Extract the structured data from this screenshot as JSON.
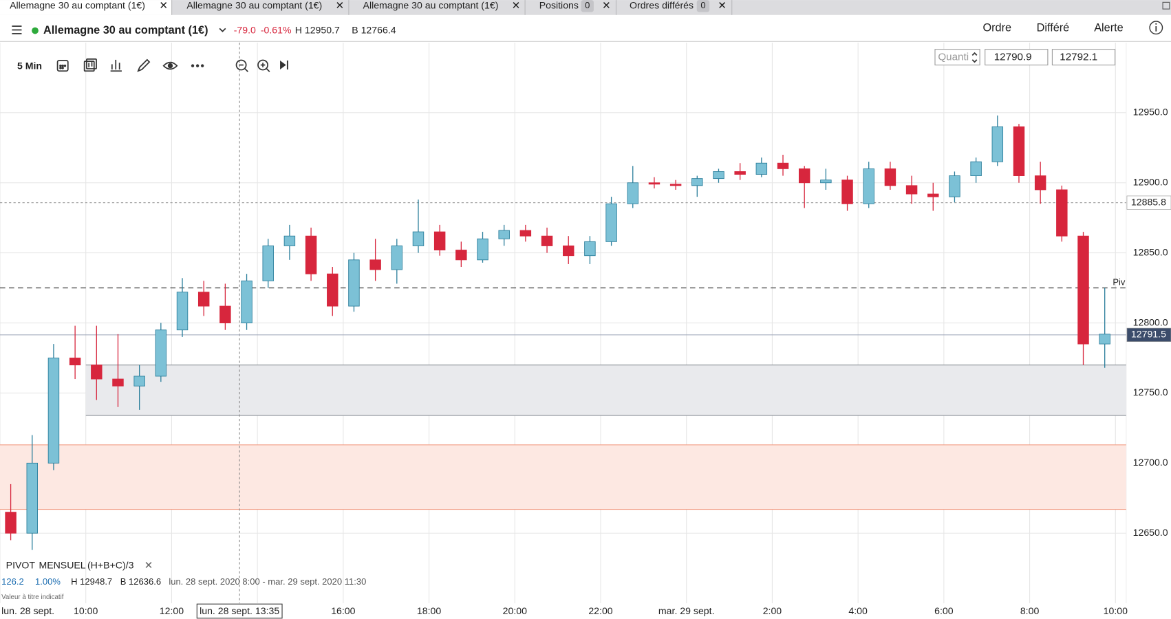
{
  "tabs": [
    {
      "label": "Allemagne 30 au comptant (1€)"
    },
    {
      "label": "Allemagne 30 au comptant (1€)"
    },
    {
      "label": "Allemagne 30 au comptant (1€)"
    },
    {
      "label": "Positions",
      "count": "0"
    },
    {
      "label": "Ordres différés",
      "count": "0"
    }
  ],
  "header": {
    "instrument": "Allemagne 30 au comptant (1€)",
    "change": "-79.0",
    "change_pct": "-0.61%",
    "high": "H 12950.7",
    "low": "B 12766.4",
    "actions": [
      "Ordre",
      "Différé",
      "Alerte"
    ]
  },
  "toolbar": {
    "interval": "5 Min",
    "quantity": "Quanti",
    "sell": "12790.9",
    "buy": "12792.1"
  },
  "chart_data": {
    "type": "candlestick",
    "x": [
      8,
      8.5,
      9,
      9.5,
      10,
      10.5,
      11,
      11.5,
      12,
      12.5,
      13,
      13.5,
      14,
      14.5,
      15,
      15.5,
      16,
      16.5,
      17,
      17.5,
      18,
      18.5,
      19,
      19.5,
      20,
      20.5,
      21,
      21.5,
      22,
      22.5,
      23,
      23.5,
      24,
      24.5,
      25,
      25.5,
      26,
      26.5,
      27,
      27.5,
      28,
      28.5,
      29,
      29.5,
      30,
      30.5,
      31,
      31.5,
      32,
      32.5,
      33,
      33.5
    ],
    "open": [
      12665,
      12650,
      12700,
      12775,
      12770,
      12760,
      12755,
      12762,
      12795,
      12822,
      12812,
      12800,
      12830,
      12855,
      12862,
      12835,
      12812,
      12845,
      12838,
      12855,
      12865,
      12852,
      12845,
      12860,
      12866,
      12862,
      12855,
      12848,
      12858,
      12885,
      12900,
      12899,
      12898,
      12903,
      12908,
      12906,
      12914,
      12910,
      12900,
      12902,
      12885,
      12910,
      12898,
      12892,
      12890,
      12905,
      12915,
      12940,
      12905,
      12895,
      12862,
      12785
    ],
    "high": [
      12685,
      12720,
      12785,
      12798,
      12798,
      12792,
      12770,
      12800,
      12832,
      12830,
      12828,
      12835,
      12860,
      12870,
      12868,
      12840,
      12850,
      12860,
      12860,
      12888,
      12870,
      12858,
      12865,
      12870,
      12870,
      12868,
      12862,
      12862,
      12890,
      12912,
      12904,
      12902,
      12905,
      12910,
      12914,
      12918,
      12920,
      12912,
      12910,
      12905,
      12915,
      12915,
      12905,
      12900,
      12908,
      12918,
      12948,
      12942,
      12915,
      12898,
      12865,
      12825
    ],
    "low": [
      12645,
      12638,
      12695,
      12760,
      12745,
      12740,
      12738,
      12758,
      12790,
      12805,
      12795,
      12795,
      12825,
      12845,
      12830,
      12805,
      12808,
      12830,
      12828,
      12850,
      12848,
      12840,
      12843,
      12855,
      12858,
      12850,
      12842,
      12842,
      12855,
      12882,
      12896,
      12895,
      12890,
      12900,
      12902,
      12904,
      12905,
      12882,
      12895,
      12880,
      12882,
      12895,
      12885,
      12880,
      12886,
      12900,
      12912,
      12900,
      12885,
      12858,
      12770,
      12768
    ],
    "close": [
      12650,
      12700,
      12775,
      12770,
      12760,
      12755,
      12762,
      12795,
      12822,
      12812,
      12800,
      12830,
      12855,
      12862,
      12835,
      12812,
      12845,
      12838,
      12855,
      12865,
      12852,
      12845,
      12860,
      12866,
      12862,
      12855,
      12848,
      12858,
      12885,
      12900,
      12899,
      12898,
      12903,
      12908,
      12906,
      12914,
      12910,
      12900,
      12902,
      12885,
      12910,
      12898,
      12892,
      12890,
      12905,
      12915,
      12940,
      12905,
      12895,
      12862,
      12785,
      12792
    ],
    "up_color": "#7cc1d6",
    "up_stroke": "#2c7f9c",
    "down_color": "#d7263d",
    "xlim": [
      8,
      34.25
    ],
    "xticks": [
      {
        "value": 8,
        "label": "lun. 28 sept."
      },
      {
        "value": 10,
        "label": "10:00"
      },
      {
        "value": 12,
        "label": "12:00"
      },
      {
        "value": 14,
        "label": null
      },
      {
        "value": 16,
        "label": "16:00"
      },
      {
        "value": 18,
        "label": "18:00"
      },
      {
        "value": 20,
        "label": "20:00"
      },
      {
        "value": 22,
        "label": "22:00"
      },
      {
        "value": 24,
        "label": "mar. 29 sept."
      },
      {
        "value": 26,
        "label": "2:00"
      },
      {
        "value": 28,
        "label": "4:00"
      },
      {
        "value": 30,
        "label": "6:00"
      },
      {
        "value": 32,
        "label": "8:00"
      },
      {
        "value": 34,
        "label": "10:00"
      }
    ],
    "ylim": [
      12600,
      13000
    ],
    "yticks": [
      {
        "value": 12650,
        "label": "12650.0"
      },
      {
        "value": 12700,
        "label": "12700.0"
      },
      {
        "value": 12750,
        "label": "12750.0"
      },
      {
        "value": 12800,
        "label": "12800.0"
      },
      {
        "value": 12850,
        "label": "12850.0"
      },
      {
        "value": 12900,
        "label": "12900.0"
      },
      {
        "value": 12950,
        "label": "12950.0"
      }
    ],
    "grid": true,
    "zones": [
      {
        "from": 12734,
        "to": 12770,
        "x_start": 10,
        "fill": "#e9eaed",
        "stroke": "#8f949c"
      },
      {
        "from": 12667,
        "to": 12713,
        "x_start": 8,
        "fill": "#fde8e2",
        "stroke": "#f29c84"
      }
    ],
    "levels": [
      {
        "value": 12885.8,
        "style": "dotted",
        "color": "#9c9c9c",
        "box_fill": "#ffffff",
        "box_text": "#222222"
      },
      {
        "value": 12825,
        "style": "dashed",
        "color": "#555555",
        "name": "Piv"
      },
      {
        "value": 12791.5,
        "style": "solid",
        "color": "#9aa3b8",
        "box_fill": "#3b4c6b",
        "box_text": "#ffffff"
      }
    ],
    "crosshair": {
      "x": 13.5833,
      "label": "lun. 28 sept. 13:35"
    }
  },
  "indicator": {
    "name": "PIVOT",
    "period": "MENSUEL",
    "formula": "(H+B+C)/3",
    "change": "126.2",
    "change_pct": "1.00%",
    "high": "H 12948.7",
    "low": "B 12636.6",
    "range": "lun. 28 sept. 2020 8:00 - mar. 29 sept. 2020 11:30"
  },
  "footnote": "Valeur à titre indicatif"
}
